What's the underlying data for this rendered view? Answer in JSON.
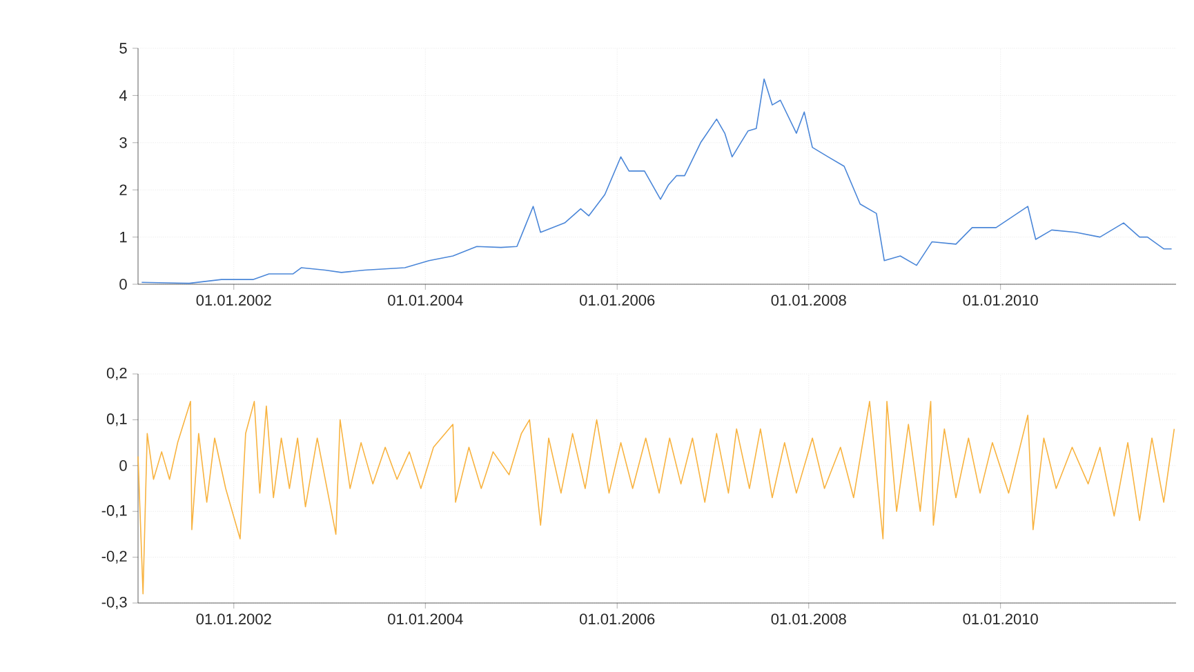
{
  "chart_data": [
    {
      "type": "line",
      "grid": true,
      "xlim": [
        "2001-01-01",
        "2011-11-01"
      ],
      "ylim": [
        0,
        5
      ],
      "xticks": [
        {
          "value": "2002-01-01",
          "label": "01.01.2002"
        },
        {
          "value": "2004-01-01",
          "label": "01.01.2004"
        },
        {
          "value": "2006-01-01",
          "label": "01.01.2006"
        },
        {
          "value": "2008-01-01",
          "label": "01.01.2008"
        },
        {
          "value": "2010-01-01",
          "label": "01.01.2010"
        }
      ],
      "yticks": [
        0,
        1,
        2,
        3,
        4,
        5
      ],
      "series": [
        {
          "color": "#4a86d8",
          "x": [
            "2001-01-15",
            "2001-07-15",
            "2001-11-15",
            "2002-03-15",
            "2002-05-15",
            "2002-08-15",
            "2002-09-15",
            "2002-12-15",
            "2003-02-15",
            "2003-05-15",
            "2003-10-15",
            "2004-01-15",
            "2004-04-15",
            "2004-07-15",
            "2004-10-15",
            "2004-12-15",
            "2005-02-15",
            "2005-03-15",
            "2005-06-15",
            "2005-08-15",
            "2005-09-15",
            "2005-11-15",
            "2006-01-15",
            "2006-02-15",
            "2006-04-15",
            "2006-06-15",
            "2006-07-15",
            "2006-08-15",
            "2006-09-15",
            "2006-11-15",
            "2007-01-15",
            "2007-02-15",
            "2007-03-15",
            "2007-05-15",
            "2007-06-15",
            "2007-07-15",
            "2007-08-15",
            "2007-09-15",
            "2007-11-15",
            "2007-12-15",
            "2008-01-15",
            "2008-03-15",
            "2008-05-15",
            "2008-07-15",
            "2008-09-15",
            "2008-10-15",
            "2008-12-15",
            "2009-02-15",
            "2009-04-15",
            "2009-07-15",
            "2009-09-15",
            "2009-12-15",
            "2010-04-15",
            "2010-05-15",
            "2010-07-15",
            "2010-10-15",
            "2011-01-15",
            "2011-04-15",
            "2011-06-15",
            "2011-07-15",
            "2011-09-15",
            "2011-10-15"
          ],
          "values": [
            0.04,
            0.02,
            0.1,
            0.1,
            0.22,
            0.22,
            0.35,
            0.3,
            0.25,
            0.3,
            0.35,
            0.5,
            0.6,
            0.8,
            0.78,
            0.8,
            1.65,
            1.1,
            1.3,
            1.6,
            1.45,
            1.9,
            2.7,
            2.4,
            2.4,
            1.8,
            2.1,
            2.3,
            2.3,
            3.0,
            3.5,
            3.2,
            2.7,
            3.25,
            3.3,
            4.35,
            3.8,
            3.9,
            3.2,
            3.65,
            2.9,
            2.7,
            2.5,
            1.7,
            1.5,
            0.5,
            0.6,
            0.4,
            0.9,
            0.85,
            1.2,
            1.2,
            1.65,
            0.95,
            1.15,
            1.1,
            1.0,
            1.3,
            1.0,
            1.0,
            0.75,
            0.75
          ]
        }
      ]
    },
    {
      "type": "line",
      "grid": true,
      "xlim": [
        "2001-01-01",
        "2011-11-01"
      ],
      "ylim": [
        -0.3,
        0.2
      ],
      "xticks": [
        {
          "value": "2002-01-01",
          "label": "01.01.2002"
        },
        {
          "value": "2004-01-01",
          "label": "01.01.2004"
        },
        {
          "value": "2006-01-01",
          "label": "01.01.2006"
        },
        {
          "value": "2008-01-01",
          "label": "01.01.2008"
        },
        {
          "value": "2010-01-01",
          "label": "01.01.2010"
        }
      ],
      "yticks": [
        {
          "value": -0.3,
          "label": "-0,3"
        },
        {
          "value": -0.2,
          "label": "-0,2"
        },
        {
          "value": -0.1,
          "label": "-0,1"
        },
        0,
        {
          "value": 0.1,
          "label": "0,1"
        },
        {
          "value": 0.2,
          "label": "0,2"
        }
      ],
      "series": [
        {
          "color": "#f8b340",
          "x": [
            "2001-01-01",
            "2001-01-20",
            "2001-02-05",
            "2001-03-01",
            "2001-04-01",
            "2001-05-01",
            "2001-06-01",
            "2001-07-20",
            "2001-07-25",
            "2001-08-20",
            "2001-09-20",
            "2001-10-20",
            "2001-12-01",
            "2002-01-25",
            "2002-02-15",
            "2002-03-20",
            "2002-04-10",
            "2002-05-05",
            "2002-06-01",
            "2002-07-01",
            "2002-08-01",
            "2002-09-01",
            "2002-10-01",
            "2002-11-15",
            "2003-01-25",
            "2003-02-10",
            "2003-03-20",
            "2003-05-01",
            "2003-06-15",
            "2003-08-01",
            "2003-09-15",
            "2003-11-01",
            "2003-12-15",
            "2004-02-01",
            "2004-04-15",
            "2004-04-25",
            "2004-06-15",
            "2004-08-01",
            "2004-09-15",
            "2004-11-15",
            "2005-01-01",
            "2005-02-01",
            "2005-03-15",
            "2005-04-15",
            "2005-06-01",
            "2005-07-15",
            "2005-09-01",
            "2005-10-15",
            "2005-12-01",
            "2006-01-15",
            "2006-03-01",
            "2006-04-20",
            "2006-06-10",
            "2006-07-20",
            "2006-09-01",
            "2006-10-15",
            "2006-12-01",
            "2007-01-15",
            "2007-03-01",
            "2007-04-01",
            "2007-05-20",
            "2007-07-01",
            "2007-08-15",
            "2007-10-01",
            "2007-11-15",
            "2008-01-15",
            "2008-03-01",
            "2008-05-01",
            "2008-06-20",
            "2008-08-20",
            "2008-10-10",
            "2008-10-25",
            "2008-12-01",
            "2009-01-15",
            "2009-03-01",
            "2009-04-10",
            "2009-04-20",
            "2009-06-01",
            "2009-07-15",
            "2009-09-01",
            "2009-10-15",
            "2009-12-01",
            "2010-02-01",
            "2010-04-15",
            "2010-05-05",
            "2010-06-15",
            "2010-08-01",
            "2010-10-01",
            "2010-12-01",
            "2011-01-15",
            "2011-03-10",
            "2011-05-01",
            "2011-06-15",
            "2011-08-01",
            "2011-09-15",
            "2011-10-25"
          ],
          "values": [
            0.02,
            -0.28,
            0.07,
            -0.03,
            0.03,
            -0.03,
            0.05,
            0.14,
            -0.14,
            0.07,
            -0.08,
            0.06,
            -0.05,
            -0.16,
            0.07,
            0.14,
            -0.06,
            0.13,
            -0.07,
            0.06,
            -0.05,
            0.06,
            -0.09,
            0.06,
            -0.15,
            0.1,
            -0.05,
            0.05,
            -0.04,
            0.04,
            -0.03,
            0.03,
            -0.05,
            0.04,
            0.09,
            -0.08,
            0.04,
            -0.05,
            0.03,
            -0.02,
            0.07,
            0.1,
            -0.13,
            0.06,
            -0.06,
            0.07,
            -0.05,
            0.1,
            -0.06,
            0.05,
            -0.05,
            0.06,
            -0.06,
            0.06,
            -0.04,
            0.06,
            -0.08,
            0.07,
            -0.06,
            0.08,
            -0.05,
            0.08,
            -0.07,
            0.05,
            -0.06,
            0.06,
            -0.05,
            0.04,
            -0.07,
            0.14,
            -0.16,
            0.14,
            -0.1,
            0.09,
            -0.1,
            0.14,
            -0.13,
            0.08,
            -0.07,
            0.06,
            -0.06,
            0.05,
            -0.06,
            0.11,
            -0.14,
            0.06,
            -0.05,
            0.04,
            -0.04,
            0.04,
            -0.11,
            0.05,
            -0.12,
            0.06,
            -0.08,
            0.08
          ]
        }
      ]
    }
  ]
}
